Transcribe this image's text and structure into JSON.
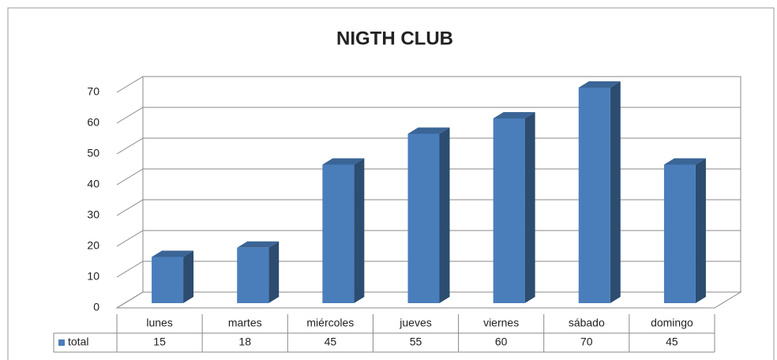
{
  "chart_data": {
    "type": "bar3d",
    "title": "NIGTH CLUB",
    "categories": [
      "lunes",
      "martes",
      "miércoles",
      "jueves",
      "viernes",
      "sábado",
      "domingo"
    ],
    "series": [
      {
        "name": "total",
        "color": "#4a7ebb",
        "values": [
          15,
          18,
          45,
          55,
          60,
          70,
          45
        ]
      }
    ],
    "ylim": [
      0,
      70
    ],
    "yticks": [
      0,
      10,
      20,
      30,
      40,
      50,
      60,
      70
    ],
    "grid": true,
    "data_table": true
  }
}
